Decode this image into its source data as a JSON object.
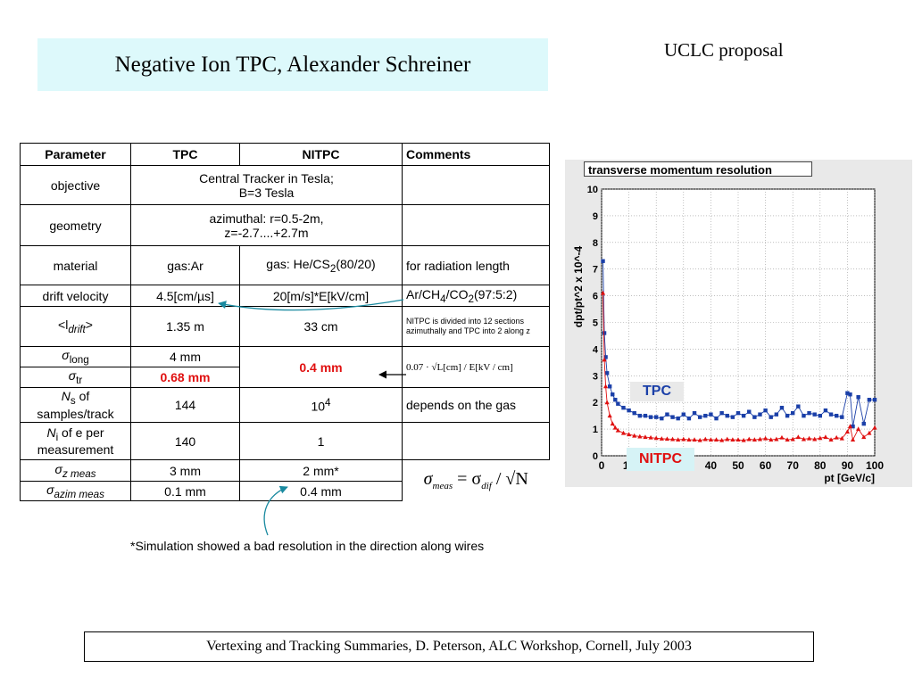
{
  "slide": {
    "title": "Negative Ion TPC, Alexander Schreiner",
    "corner_label": "UCLC proposal",
    "footnote": "*Simulation showed a bad resolution in the direction along wires",
    "footer": "Vertexing and Tracking Summaries, D. Peterson,  ALC Workshop, Cornell, July 2003"
  },
  "table": {
    "headers": [
      "Parameter",
      "TPC",
      "NITPC",
      "Comments"
    ],
    "objective": {
      "label": "objective",
      "value1": "Central Tracker in Tesla;",
      "value2": "B=3 Tesla",
      "comment": ""
    },
    "geometry": {
      "label": "geometry",
      "value1": "azimuthal: r=0.5-2m,",
      "value2": "z=-2.7....+2.7m",
      "comment": ""
    },
    "material": {
      "label": "material",
      "tpc": "gas:Ar",
      "nitpc_pre": "gas: He/CS",
      "nitpc_sub": "2",
      "nitpc_post": "(80/20)",
      "comment": "for radiation length"
    },
    "drift_velocity": {
      "label": "drift velocity",
      "tpc": "4.5[cm/µs]",
      "nitpc": "20[m/s]*E[kV/cm]",
      "comment_a": "Ar/CH",
      "comment_sub1": "4",
      "comment_b": "/CO",
      "comment_sub2": "2",
      "comment_c": "(97:5:2)"
    },
    "ldrift": {
      "label_pre": "<l",
      "label_sub": "drift",
      "label_post": ">",
      "tpc": "1.35 m",
      "nitpc": "33 cm",
      "comment": "NITPC is divided into 12 sections azimuthally  and TPC into 2 along z"
    },
    "sigma_long": {
      "label_sym": "σ",
      "label_sub": "long",
      "tpc": "4 mm"
    },
    "sigma_tr": {
      "label_sym": "σ",
      "label_sub": "tr",
      "tpc": "0.68 mm"
    },
    "sigma_merged_nitpc": "0.4 mm",
    "sigma_formula": "0.07 · √L[cm] / E[kV / cm]",
    "ns": {
      "label_a": "N",
      "label_sub": "s",
      "label_b": " of",
      "label_c": "samples/track",
      "tpc": "144",
      "nitpc_base": "10",
      "nitpc_exp": "4",
      "comment": "depends on the gas"
    },
    "ni": {
      "label_a": "N",
      "label_sub": "i",
      "label_b": " of e per",
      "label_c": "measurement",
      "tpc": "140",
      "nitpc": "1",
      "comment": ""
    },
    "sigma_z": {
      "label_sym": "σ",
      "label_sub": "z  meas",
      "tpc": "3 mm",
      "nitpc": "2 mm*"
    },
    "sigma_azim": {
      "label_sym": "σ",
      "label_sub": "azim  meas",
      "tpc": "0.1 mm",
      "nitpc": "0.4 mm"
    },
    "meas_formula": {
      "lhs": "σ",
      "lhs_sub": "meas",
      "eq": " = σ",
      "rhs_sub": "dif",
      "slash": " / √N"
    }
  },
  "chart_data": {
    "type": "scatter",
    "title": "transverse momentum resolution",
    "xlabel": "pt [GeV/c]",
    "ylabel": "dpt/pt^2 x 10^-4",
    "xlim": [
      0,
      100
    ],
    "ylim": [
      0,
      10
    ],
    "xticks": [
      0,
      10,
      20,
      30,
      40,
      50,
      60,
      70,
      80,
      90,
      100
    ],
    "yticks": [
      0,
      1,
      2,
      3,
      4,
      5,
      6,
      7,
      8,
      9,
      10
    ],
    "grid": true,
    "colors": {
      "tpc": "#1a3fa8",
      "nitpc": "#e01010"
    },
    "series": [
      {
        "name": "TPC",
        "x": [
          0.5,
          1,
          1.5,
          2,
          3,
          4,
          5,
          6,
          8,
          10,
          12,
          14,
          16,
          18,
          20,
          22,
          24,
          26,
          28,
          30,
          32,
          34,
          36,
          38,
          40,
          42,
          44,
          46,
          48,
          50,
          52,
          54,
          56,
          58,
          60,
          62,
          64,
          66,
          68,
          70,
          72,
          74,
          76,
          78,
          80,
          82,
          84,
          86,
          88,
          90,
          91,
          92,
          94,
          96,
          98,
          100
        ],
        "y": [
          7.3,
          4.6,
          3.7,
          3.1,
          2.6,
          2.3,
          2.1,
          1.95,
          1.8,
          1.7,
          1.6,
          1.5,
          1.5,
          1.45,
          1.45,
          1.4,
          1.55,
          1.45,
          1.4,
          1.55,
          1.4,
          1.6,
          1.45,
          1.5,
          1.55,
          1.4,
          1.6,
          1.5,
          1.45,
          1.6,
          1.5,
          1.65,
          1.45,
          1.55,
          1.7,
          1.45,
          1.55,
          1.8,
          1.5,
          1.6,
          1.85,
          1.5,
          1.6,
          1.55,
          1.5,
          1.7,
          1.55,
          1.5,
          1.45,
          2.35,
          2.3,
          1.1,
          2.2,
          1.2,
          2.1,
          2.1
        ]
      },
      {
        "name": "NITPC",
        "x": [
          0.5,
          1,
          1.5,
          2,
          3,
          4,
          5,
          6,
          8,
          10,
          12,
          14,
          16,
          18,
          20,
          22,
          24,
          26,
          28,
          30,
          32,
          34,
          36,
          38,
          40,
          42,
          44,
          46,
          48,
          50,
          52,
          54,
          56,
          58,
          60,
          62,
          64,
          66,
          68,
          70,
          72,
          74,
          76,
          78,
          80,
          82,
          84,
          86,
          88,
          90,
          91,
          92,
          94,
          96,
          98,
          100
        ],
        "y": [
          6.1,
          3.6,
          2.6,
          2.0,
          1.5,
          1.2,
          1.05,
          0.95,
          0.85,
          0.8,
          0.75,
          0.72,
          0.7,
          0.68,
          0.66,
          0.64,
          0.63,
          0.62,
          0.6,
          0.62,
          0.6,
          0.6,
          0.58,
          0.62,
          0.6,
          0.6,
          0.58,
          0.62,
          0.6,
          0.6,
          0.58,
          0.62,
          0.6,
          0.62,
          0.65,
          0.6,
          0.62,
          0.68,
          0.6,
          0.62,
          0.7,
          0.62,
          0.65,
          0.62,
          0.66,
          0.7,
          0.6,
          0.68,
          0.65,
          0.9,
          1.1,
          0.6,
          1.0,
          0.7,
          0.85,
          1.05
        ]
      }
    ]
  }
}
